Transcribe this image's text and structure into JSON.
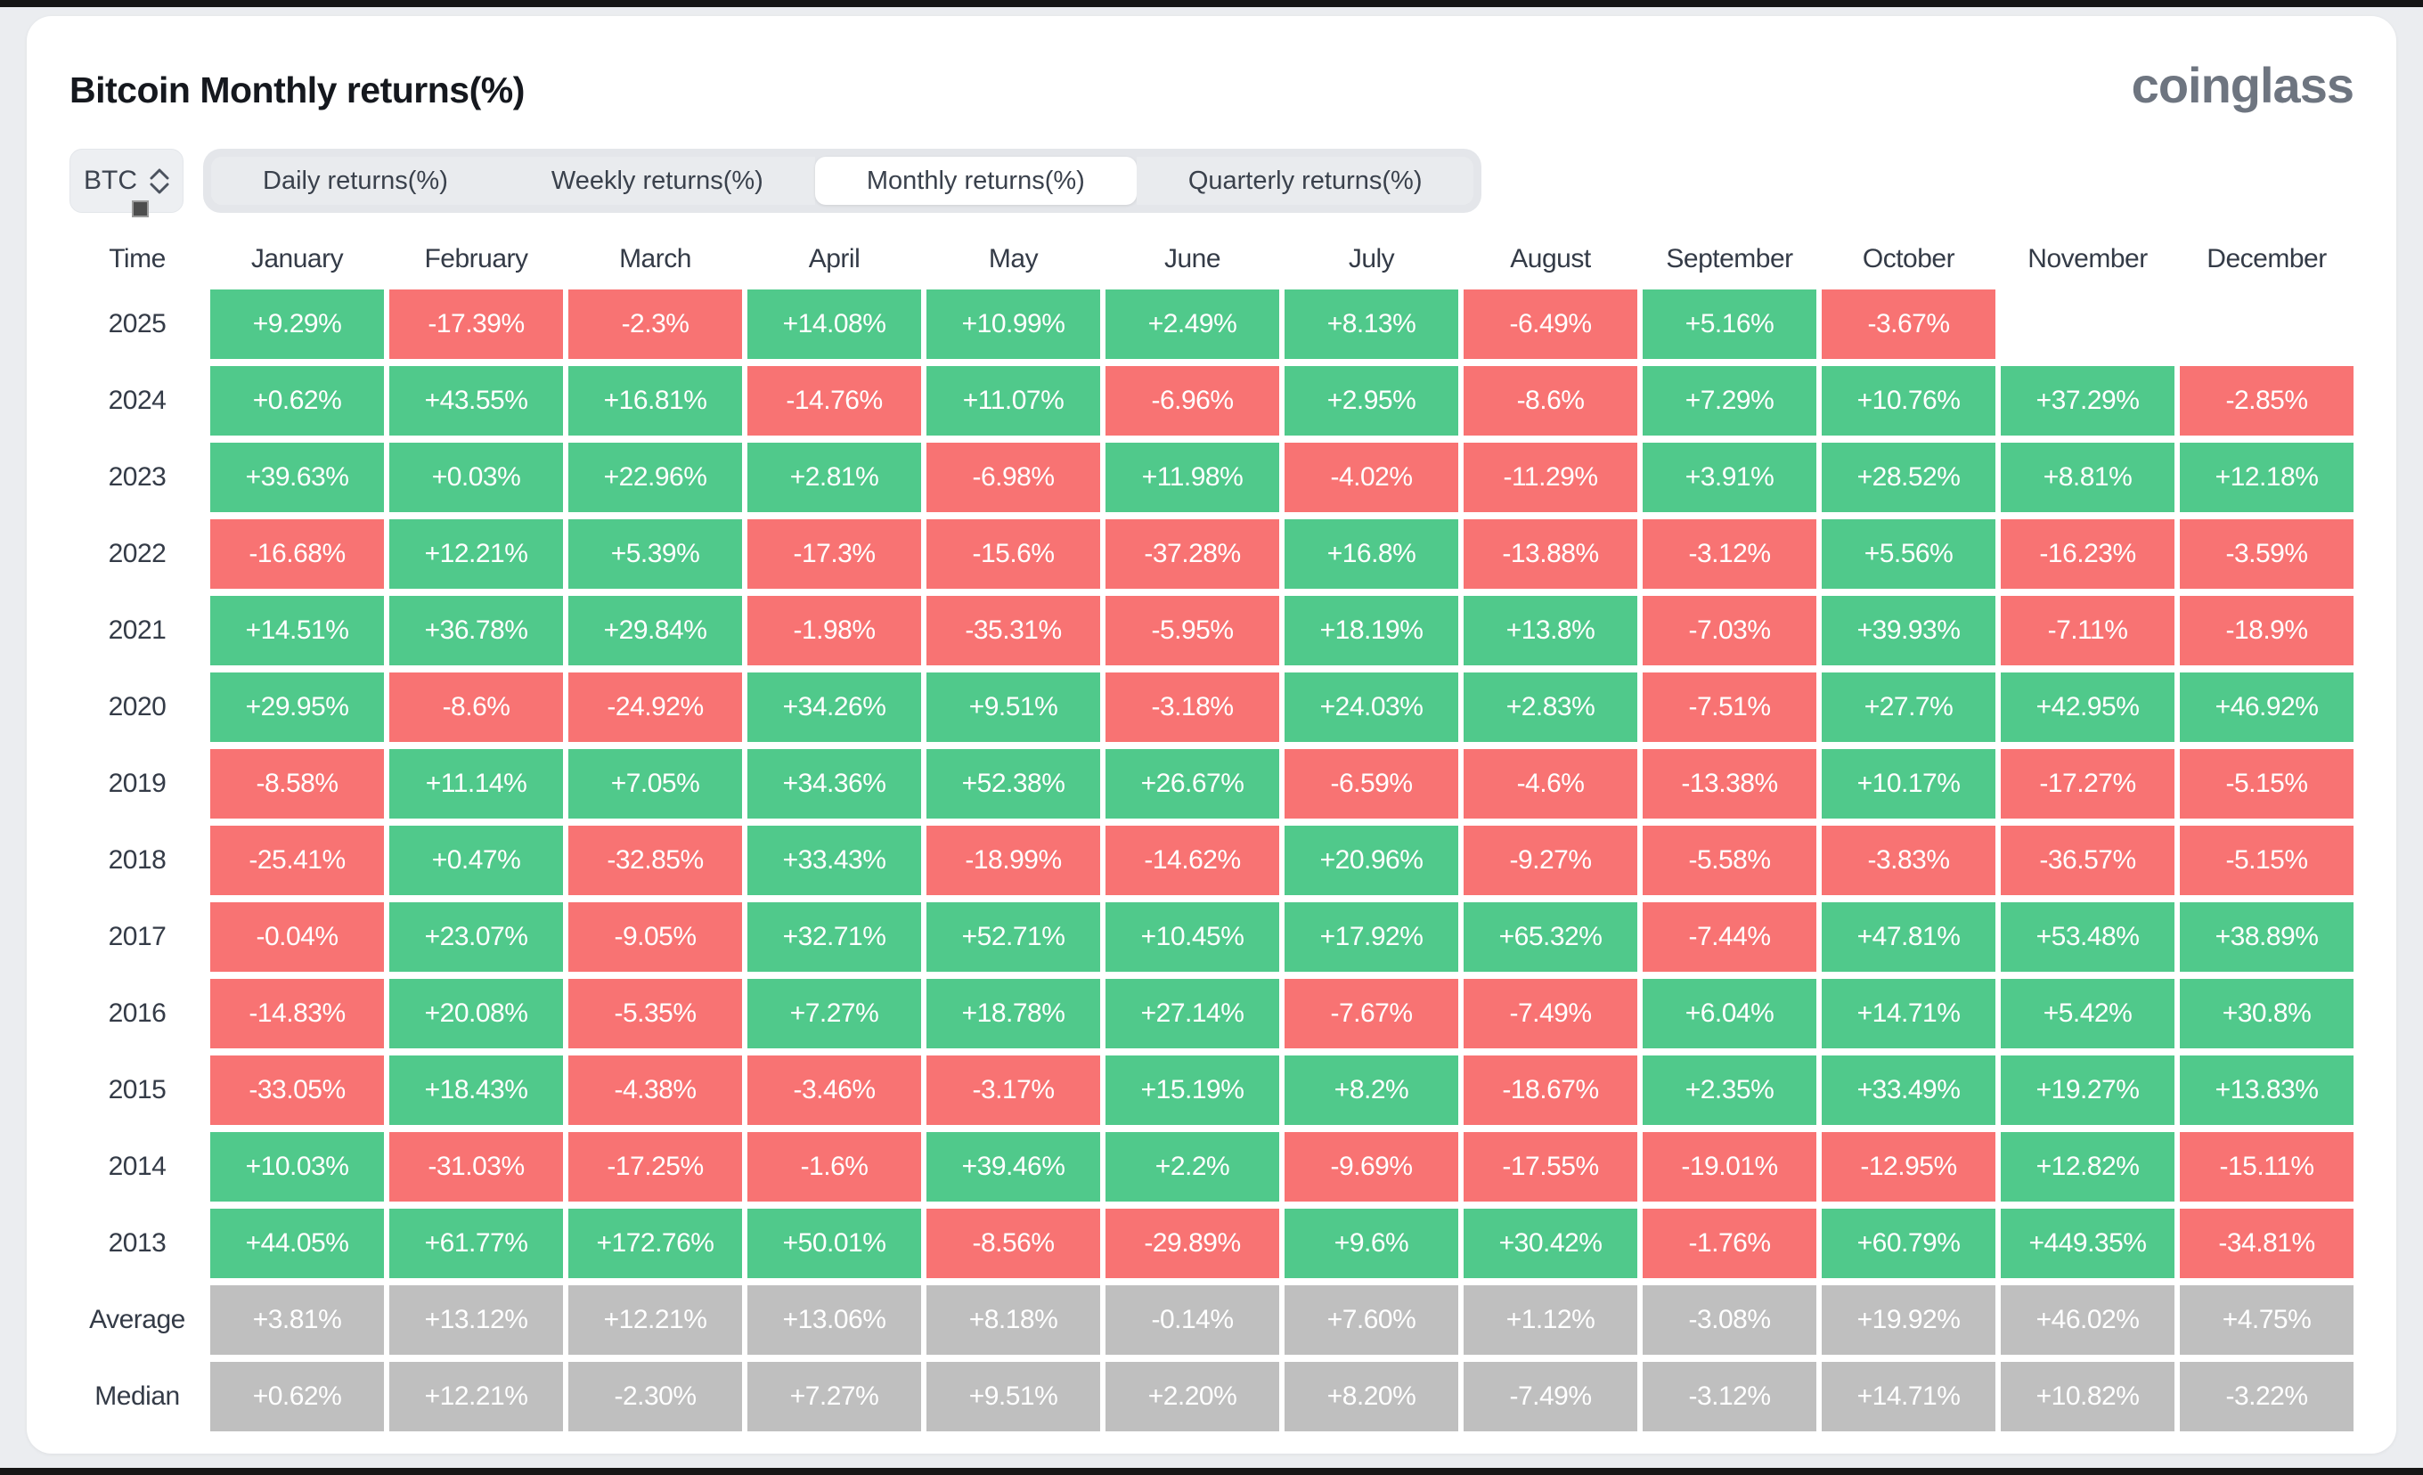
{
  "ui": {
    "title": "Bitcoin Monthly returns(%)",
    "logo": "coinglass",
    "symbol_select": {
      "value": "BTC"
    },
    "time_column_header": "Time"
  },
  "tabs": [
    {
      "label": "Daily returns(%)",
      "active": false
    },
    {
      "label": "Weekly returns(%)",
      "active": false
    },
    {
      "label": "Monthly returns(%)",
      "active": true
    },
    {
      "label": "Quarterly returns(%)",
      "active": false
    }
  ],
  "chart_data": {
    "type": "heatmap",
    "title": "Bitcoin Monthly returns(%)",
    "columns": [
      "January",
      "February",
      "March",
      "April",
      "May",
      "June",
      "July",
      "August",
      "September",
      "October",
      "November",
      "December"
    ],
    "colors": {
      "positive": "#50c98b",
      "negative": "#f87373",
      "neutral": "#bfbfbf"
    },
    "rows": [
      {
        "label": "2025",
        "style": "signed",
        "values": [
          "+9.29%",
          "-17.39%",
          "-2.3%",
          "+14.08%",
          "+10.99%",
          "+2.49%",
          "+8.13%",
          "-6.49%",
          "+5.16%",
          "-3.67%",
          null,
          null
        ]
      },
      {
        "label": "2024",
        "style": "signed",
        "values": [
          "+0.62%",
          "+43.55%",
          "+16.81%",
          "-14.76%",
          "+11.07%",
          "-6.96%",
          "+2.95%",
          "-8.6%",
          "+7.29%",
          "+10.76%",
          "+37.29%",
          "-2.85%"
        ]
      },
      {
        "label": "2023",
        "style": "signed",
        "values": [
          "+39.63%",
          "+0.03%",
          "+22.96%",
          "+2.81%",
          "-6.98%",
          "+11.98%",
          "-4.02%",
          "-11.29%",
          "+3.91%",
          "+28.52%",
          "+8.81%",
          "+12.18%"
        ]
      },
      {
        "label": "2022",
        "style": "signed",
        "values": [
          "-16.68%",
          "+12.21%",
          "+5.39%",
          "-17.3%",
          "-15.6%",
          "-37.28%",
          "+16.8%",
          "-13.88%",
          "-3.12%",
          "+5.56%",
          "-16.23%",
          "-3.59%"
        ]
      },
      {
        "label": "2021",
        "style": "signed",
        "values": [
          "+14.51%",
          "+36.78%",
          "+29.84%",
          "-1.98%",
          "-35.31%",
          "-5.95%",
          "+18.19%",
          "+13.8%",
          "-7.03%",
          "+39.93%",
          "-7.11%",
          "-18.9%"
        ]
      },
      {
        "label": "2020",
        "style": "signed",
        "values": [
          "+29.95%",
          "-8.6%",
          "-24.92%",
          "+34.26%",
          "+9.51%",
          "-3.18%",
          "+24.03%",
          "+2.83%",
          "-7.51%",
          "+27.7%",
          "+42.95%",
          "+46.92%"
        ]
      },
      {
        "label": "2019",
        "style": "signed",
        "values": [
          "-8.58%",
          "+11.14%",
          "+7.05%",
          "+34.36%",
          "+52.38%",
          "+26.67%",
          "-6.59%",
          "-4.6%",
          "-13.38%",
          "+10.17%",
          "-17.27%",
          "-5.15%"
        ]
      },
      {
        "label": "2018",
        "style": "signed",
        "values": [
          "-25.41%",
          "+0.47%",
          "-32.85%",
          "+33.43%",
          "-18.99%",
          "-14.62%",
          "+20.96%",
          "-9.27%",
          "-5.58%",
          "-3.83%",
          "-36.57%",
          "-5.15%"
        ]
      },
      {
        "label": "2017",
        "style": "signed",
        "values": [
          "-0.04%",
          "+23.07%",
          "-9.05%",
          "+32.71%",
          "+52.71%",
          "+10.45%",
          "+17.92%",
          "+65.32%",
          "-7.44%",
          "+47.81%",
          "+53.48%",
          "+38.89%"
        ]
      },
      {
        "label": "2016",
        "style": "signed",
        "values": [
          "-14.83%",
          "+20.08%",
          "-5.35%",
          "+7.27%",
          "+18.78%",
          "+27.14%",
          "-7.67%",
          "-7.49%",
          "+6.04%",
          "+14.71%",
          "+5.42%",
          "+30.8%"
        ]
      },
      {
        "label": "2015",
        "style": "signed",
        "values": [
          "-33.05%",
          "+18.43%",
          "-4.38%",
          "-3.46%",
          "-3.17%",
          "+15.19%",
          "+8.2%",
          "-18.67%",
          "+2.35%",
          "+33.49%",
          "+19.27%",
          "+13.83%"
        ]
      },
      {
        "label": "2014",
        "style": "signed",
        "values": [
          "+10.03%",
          "-31.03%",
          "-17.25%",
          "-1.6%",
          "+39.46%",
          "+2.2%",
          "-9.69%",
          "-17.55%",
          "-19.01%",
          "-12.95%",
          "+12.82%",
          "-15.11%"
        ]
      },
      {
        "label": "2013",
        "style": "signed",
        "values": [
          "+44.05%",
          "+61.77%",
          "+172.76%",
          "+50.01%",
          "-8.56%",
          "-29.89%",
          "+9.6%",
          "+30.42%",
          "-1.76%",
          "+60.79%",
          "+449.35%",
          "-34.81%"
        ]
      },
      {
        "label": "Average",
        "style": "neutral",
        "values": [
          "+3.81%",
          "+13.12%",
          "+12.21%",
          "+13.06%",
          "+8.18%",
          "-0.14%",
          "+7.60%",
          "+1.12%",
          "-3.08%",
          "+19.92%",
          "+46.02%",
          "+4.75%"
        ]
      },
      {
        "label": "Median",
        "style": "neutral",
        "values": [
          "+0.62%",
          "+12.21%",
          "-2.30%",
          "+7.27%",
          "+9.51%",
          "+2.20%",
          "+8.20%",
          "-7.49%",
          "-3.12%",
          "+14.71%",
          "+10.82%",
          "-3.22%"
        ]
      }
    ]
  }
}
